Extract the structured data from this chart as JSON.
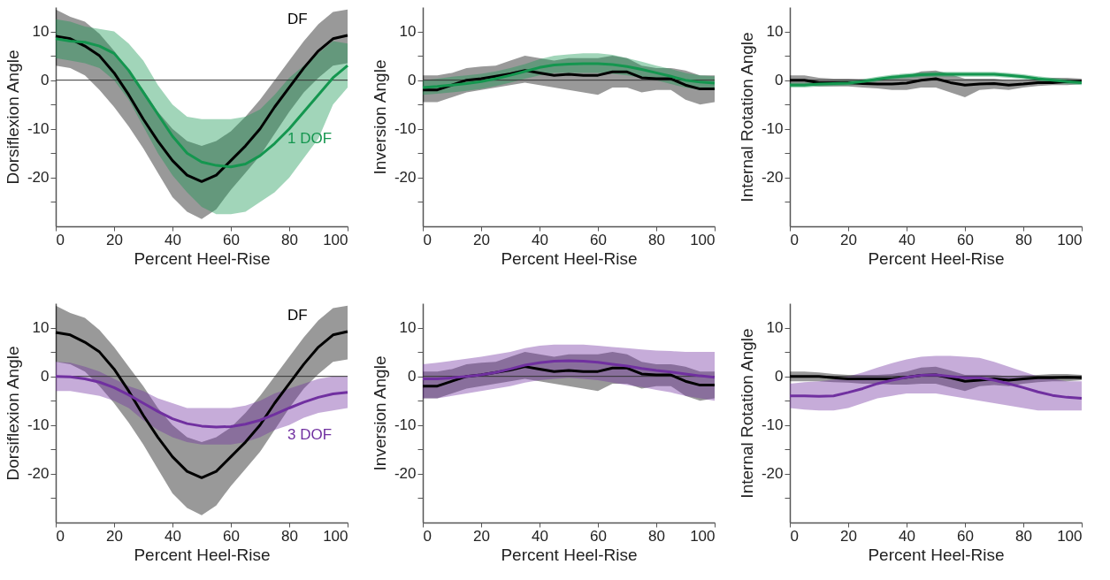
{
  "chart_data": [
    {
      "type": "line",
      "xlabel": "Percent Heel-Rise",
      "ylabel": "Dorsiflexion Angle",
      "x": [
        0,
        5,
        10,
        15,
        20,
        25,
        30,
        35,
        40,
        45,
        50,
        55,
        60,
        65,
        70,
        75,
        80,
        85,
        90,
        95,
        100
      ],
      "xlim": [
        0,
        100
      ],
      "xticks": [
        0,
        20,
        40,
        60,
        80,
        100
      ],
      "ylim": [
        -30,
        15
      ],
      "yticks": [
        {
          "value": -25,
          "label": null
        },
        -20,
        {
          "value": -15,
          "label": null
        },
        -10,
        {
          "value": -5,
          "label": null
        },
        0,
        {
          "value": 5,
          "label": null
        },
        10
      ],
      "ref_lines": [
        {
          "axis": "y",
          "value": 0,
          "color": "#333333"
        }
      ],
      "series": [
        {
          "name": "DF",
          "color": "#000000",
          "values": [
            9,
            8.5,
            7,
            5,
            1.5,
            -3,
            -8,
            -12.5,
            -16.5,
            -19.5,
            -20.8,
            -19.5,
            -16.5,
            -13.5,
            -10,
            -5.5,
            -1.5,
            2.5,
            6,
            8.5,
            9.2
          ],
          "upper": [
            14.5,
            13,
            12,
            9.5,
            6,
            2,
            -2,
            -6.5,
            -10,
            -12.5,
            -13.5,
            -12.5,
            -10.5,
            -7.5,
            -4,
            0,
            4,
            8,
            11.5,
            14,
            14.5
          ],
          "lower": [
            3,
            2.5,
            1,
            -2,
            -5.5,
            -9.5,
            -14,
            -19,
            -24,
            -27,
            -28.5,
            -26.5,
            -22.5,
            -19,
            -15.5,
            -11,
            -6.5,
            -2.5,
            0.5,
            3,
            3.5
          ]
        },
        {
          "name": "1 DOF",
          "color": "#14964f",
          "values": [
            8.5,
            8,
            7.8,
            7,
            5.5,
            2,
            -2.5,
            -7,
            -11.5,
            -15,
            -16.8,
            -17.5,
            -17.8,
            -17.2,
            -15.5,
            -13,
            -10,
            -6.5,
            -3,
            0.5,
            3
          ],
          "upper": [
            12.5,
            12,
            11,
            10.5,
            10,
            7.5,
            4,
            -1,
            -5,
            -7.5,
            -8,
            -8,
            -8,
            -7.5,
            -6,
            -3,
            0.5,
            3,
            5.5,
            8,
            7.5
          ],
          "lower": [
            4.5,
            4,
            3.5,
            2.5,
            0,
            -4,
            -9.5,
            -15,
            -19.5,
            -23,
            -26,
            -27.5,
            -27.5,
            -27,
            -25,
            -23,
            -20,
            -16,
            -12,
            -5,
            -1.5
          ]
        }
      ]
    },
    {
      "type": "line",
      "xlabel": "Percent Heel-Rise",
      "ylabel": "Inversion Angle",
      "x": [
        0,
        5,
        10,
        15,
        20,
        25,
        30,
        35,
        40,
        45,
        50,
        55,
        60,
        65,
        70,
        75,
        80,
        85,
        90,
        95,
        100
      ],
      "xlim": [
        0,
        100
      ],
      "xticks": [
        0,
        20,
        40,
        60,
        80,
        100
      ],
      "ylim": [
        -30,
        15
      ],
      "yticks": [
        {
          "value": -25,
          "label": null
        },
        -20,
        {
          "value": -15,
          "label": null
        },
        -10,
        {
          "value": -5,
          "label": null
        },
        0,
        {
          "value": 5,
          "label": null
        },
        10
      ],
      "ref_lines": [
        {
          "axis": "y",
          "value": 0,
          "color": "#333333"
        }
      ],
      "series": [
        {
          "color": "#000000",
          "values": [
            -2,
            -2,
            -1,
            0,
            0.3,
            0.8,
            1.3,
            2,
            1.5,
            1,
            1.2,
            1,
            1,
            1.7,
            1.7,
            0.5,
            0.3,
            0.3,
            -1,
            -1.8,
            -1.8
          ],
          "upper": [
            1,
            1,
            1.5,
            2.5,
            2.8,
            3,
            4,
            5,
            4.5,
            4,
            4.5,
            4.5,
            4.5,
            5,
            4.5,
            3,
            2.5,
            2.5,
            2,
            1,
            1
          ],
          "lower": [
            -4.5,
            -4.5,
            -3.5,
            -2.5,
            -2,
            -1.5,
            -1,
            -0.5,
            -1,
            -1.5,
            -2,
            -2.5,
            -3,
            -1.5,
            -1.5,
            -2.5,
            -2,
            -2,
            -4,
            -5,
            -4.5
          ]
        },
        {
          "color": "#14964f",
          "values": [
            -1.5,
            -1.3,
            -1,
            -0.7,
            -0.3,
            0.3,
            1,
            1.8,
            2.6,
            3.1,
            3.3,
            3.4,
            3.4,
            3.2,
            2.8,
            2.2,
            1.5,
            0.8,
            0,
            -0.4,
            -0.6
          ],
          "upper": [
            0,
            0.3,
            0.7,
            1,
            1.3,
            1.8,
            2.5,
            3.3,
            4.3,
            5,
            5.3,
            5.5,
            5.5,
            5.2,
            4.5,
            3.8,
            3,
            2.3,
            1.5,
            1,
            0.8
          ],
          "lower": [
            -3,
            -2.8,
            -2.5,
            -2.2,
            -1.8,
            -1.2,
            -0.5,
            0.3,
            1,
            1.5,
            1.5,
            1.5,
            1.5,
            1.3,
            1,
            0.5,
            0,
            -0.8,
            -1.5,
            -2,
            -2
          ]
        }
      ]
    },
    {
      "type": "line",
      "xlabel": "Percent Heel-Rise",
      "ylabel": "Internal Rotation Angle",
      "x": [
        0,
        5,
        10,
        15,
        20,
        25,
        30,
        35,
        40,
        45,
        50,
        55,
        60,
        65,
        70,
        75,
        80,
        85,
        90,
        95,
        100
      ],
      "xlim": [
        0,
        100
      ],
      "xticks": [
        0,
        20,
        40,
        60,
        80,
        100
      ],
      "ylim": [
        -30,
        15
      ],
      "yticks": [
        {
          "value": -25,
          "label": null
        },
        -20,
        {
          "value": -15,
          "label": null
        },
        -10,
        {
          "value": -5,
          "label": null
        },
        0,
        {
          "value": 5,
          "label": null
        },
        10
      ],
      "ref_lines": [
        {
          "axis": "y",
          "value": 0,
          "color": "#333333"
        }
      ],
      "series": [
        {
          "color": "#000000",
          "values": [
            0,
            0,
            -0.5,
            -0.5,
            -0.5,
            -0.7,
            -0.8,
            -0.8,
            -0.6,
            0,
            0.3,
            -0.5,
            -1,
            -0.8,
            -0.7,
            -1,
            -0.8,
            -0.5,
            -0.5,
            -0.3,
            -0.3
          ],
          "upper": [
            1,
            1,
            0.5,
            0.3,
            0.3,
            0.2,
            0.2,
            0.5,
            0.8,
            1.8,
            2,
            1.2,
            0.3,
            0.3,
            0.3,
            0,
            0,
            0.3,
            0.5,
            0.5,
            0.3
          ],
          "lower": [
            -1,
            -1,
            -1.3,
            -1.3,
            -1.3,
            -1.5,
            -1.7,
            -2,
            -2,
            -1.5,
            -1.5,
            -2.5,
            -3.5,
            -2,
            -1.8,
            -2,
            -1.5,
            -1.2,
            -1,
            -1,
            -0.8
          ]
        },
        {
          "color": "#14964f",
          "values": [
            -1,
            -1,
            -0.8,
            -0.7,
            -0.6,
            -0.3,
            0.2,
            0.6,
            0.9,
            1.1,
            1.2,
            1.2,
            1.2,
            1.2,
            1.2,
            1,
            0.7,
            0.3,
            0,
            -0.3,
            -0.5
          ],
          "upper": [
            -0.5,
            -0.5,
            -0.3,
            -0.2,
            -0.1,
            0.2,
            0.7,
            1.1,
            1.4,
            1.6,
            1.7,
            1.7,
            1.7,
            1.7,
            1.7,
            1.5,
            1.2,
            0.8,
            0.5,
            0.2,
            0
          ],
          "lower": [
            -1.5,
            -1.5,
            -1.3,
            -1.2,
            -1.1,
            -0.8,
            -0.3,
            0.1,
            0.4,
            0.6,
            0.7,
            0.7,
            0.7,
            0.7,
            0.7,
            0.5,
            0.2,
            -0.2,
            -0.5,
            -0.8,
            -1
          ]
        }
      ]
    },
    {
      "type": "line",
      "xlabel": "Percent Heel-Rise",
      "ylabel": "Dorsiflexion Angle",
      "x": [
        0,
        5,
        10,
        15,
        20,
        25,
        30,
        35,
        40,
        45,
        50,
        55,
        60,
        65,
        70,
        75,
        80,
        85,
        90,
        95,
        100
      ],
      "xlim": [
        0,
        100
      ],
      "xticks": [
        0,
        20,
        40,
        60,
        80,
        100
      ],
      "ylim": [
        -30,
        15
      ],
      "yticks": [
        {
          "value": -25,
          "label": null
        },
        -20,
        {
          "value": -15,
          "label": null
        },
        -10,
        {
          "value": -5,
          "label": null
        },
        0,
        {
          "value": 5,
          "label": null
        },
        10
      ],
      "ref_lines": [
        {
          "axis": "y",
          "value": 0,
          "color": "#333333"
        }
      ],
      "series": [
        {
          "name": "DF",
          "color": "#000000",
          "values": [
            9,
            8.5,
            7,
            5,
            1.5,
            -3,
            -8,
            -12.5,
            -16.5,
            -19.5,
            -20.8,
            -19.5,
            -16.5,
            -13.5,
            -10,
            -5.5,
            -1.5,
            2.5,
            6,
            8.5,
            9.2
          ],
          "upper": [
            14.5,
            13,
            12,
            9.5,
            6,
            2,
            -2,
            -6.5,
            -10,
            -12.5,
            -13.5,
            -12.5,
            -10.5,
            -7.5,
            -4,
            0,
            4,
            8,
            11.5,
            14,
            14.5
          ],
          "lower": [
            3,
            2.5,
            1,
            -2,
            -5.5,
            -9.5,
            -14,
            -19,
            -24,
            -27,
            -28.5,
            -26.5,
            -22.5,
            -19,
            -15.5,
            -11,
            -6.5,
            -2.5,
            0.5,
            3,
            3.5
          ]
        },
        {
          "name": "3 DOF",
          "color": "#7030a0",
          "values": [
            0,
            -0.1,
            -0.5,
            -1.2,
            -2.3,
            -3.8,
            -5.5,
            -7.2,
            -8.7,
            -9.7,
            -10.2,
            -10.4,
            -10.3,
            -9.8,
            -9,
            -7.8,
            -6.5,
            -5.3,
            -4.3,
            -3.6,
            -3.3
          ],
          "upper": [
            3,
            2.8,
            2,
            1,
            -0.5,
            -2,
            -3,
            -4.5,
            -5.5,
            -6.5,
            -6.5,
            -6.5,
            -6.5,
            -6,
            -5,
            -3.5,
            -2.5,
            -1.5,
            -0.5,
            0,
            0
          ],
          "lower": [
            -3,
            -3,
            -3.5,
            -4,
            -5,
            -6.5,
            -9,
            -11,
            -12.5,
            -13.5,
            -14,
            -14,
            -14,
            -13.5,
            -12.5,
            -11,
            -10,
            -8.5,
            -7.5,
            -7,
            -6.5
          ]
        }
      ]
    },
    {
      "type": "line",
      "xlabel": "Percent Heel-Rise",
      "ylabel": "Inversion Angle",
      "x": [
        0,
        5,
        10,
        15,
        20,
        25,
        30,
        35,
        40,
        45,
        50,
        55,
        60,
        65,
        70,
        75,
        80,
        85,
        90,
        95,
        100
      ],
      "xlim": [
        0,
        100
      ],
      "xticks": [
        0,
        20,
        40,
        60,
        80,
        100
      ],
      "ylim": [
        -30,
        15
      ],
      "yticks": [
        {
          "value": -25,
          "label": null
        },
        -20,
        {
          "value": -15,
          "label": null
        },
        -10,
        {
          "value": -5,
          "label": null
        },
        0,
        {
          "value": 5,
          "label": null
        },
        10
      ],
      "ref_lines": [
        {
          "axis": "y",
          "value": 0,
          "color": "#333333"
        }
      ],
      "series": [
        {
          "color": "#000000",
          "values": [
            -2,
            -2,
            -1,
            0,
            0.3,
            0.8,
            1.3,
            2,
            1.5,
            1,
            1.2,
            1,
            1,
            1.7,
            1.7,
            0.5,
            0.3,
            0.3,
            -1,
            -1.8,
            -1.8
          ],
          "upper": [
            1,
            1,
            1.5,
            2.5,
            2.8,
            3,
            4,
            5,
            4.5,
            4,
            4.5,
            4.5,
            4.5,
            5,
            4.5,
            3,
            2.5,
            2.5,
            2,
            1,
            1
          ],
          "lower": [
            -4.5,
            -4.5,
            -3.5,
            -2.5,
            -2,
            -1.5,
            -1,
            -0.5,
            -1,
            -1.5,
            -2,
            -2.5,
            -3,
            -1.5,
            -1.5,
            -2.5,
            -2,
            -2,
            -4,
            -5,
            -4.5
          ]
        },
        {
          "color": "#7030a0",
          "values": [
            -0.5,
            -0.5,
            -0.3,
            0,
            0.3,
            0.8,
            1.5,
            2.3,
            2.8,
            3.1,
            3.2,
            3.1,
            2.9,
            2.5,
            2.1,
            1.6,
            1.2,
            0.9,
            0.5,
            0.1,
            -0.2
          ],
          "upper": [
            2.5,
            2.8,
            3.2,
            3.6,
            4,
            4.5,
            5,
            5.8,
            6.3,
            6.5,
            6.5,
            6.5,
            6.3,
            6,
            5.8,
            5.5,
            5.3,
            5.2,
            5,
            5,
            5
          ],
          "lower": [
            -4.5,
            -4.5,
            -4,
            -3.5,
            -3,
            -2.5,
            -2,
            -1.3,
            -0.8,
            -0.5,
            -0.3,
            -0.5,
            -0.8,
            -1.3,
            -1.8,
            -2.2,
            -2.8,
            -3.3,
            -4,
            -4.5,
            -5
          ]
        }
      ]
    },
    {
      "type": "line",
      "xlabel": "Percent Heel-Rise",
      "ylabel": "Internal Rotation Angle",
      "x": [
        0,
        5,
        10,
        15,
        20,
        25,
        30,
        35,
        40,
        45,
        50,
        55,
        60,
        65,
        70,
        75,
        80,
        85,
        90,
        95,
        100
      ],
      "xlim": [
        0,
        100
      ],
      "xticks": [
        0,
        20,
        40,
        60,
        80,
        100
      ],
      "ylim": [
        -30,
        15
      ],
      "yticks": [
        {
          "value": -25,
          "label": null
        },
        -20,
        {
          "value": -15,
          "label": null
        },
        -10,
        {
          "value": -5,
          "label": null
        },
        0,
        {
          "value": 5,
          "label": null
        },
        10
      ],
      "ref_lines": [
        {
          "axis": "y",
          "value": 0,
          "color": "#333333"
        }
      ],
      "series": [
        {
          "color": "#000000",
          "values": [
            0,
            0,
            0,
            -0.3,
            -0.5,
            -0.5,
            -0.5,
            -0.5,
            -0.2,
            0.2,
            0.3,
            -0.3,
            -1,
            -0.8,
            -0.5,
            -0.8,
            -0.5,
            -0.3,
            -0.3,
            -0.2,
            -0.3
          ],
          "upper": [
            1,
            1,
            0.8,
            0.5,
            0.3,
            0.3,
            0.3,
            0.5,
            1,
            1.8,
            2,
            1.2,
            0.3,
            0.3,
            0.3,
            0,
            0.2,
            0.3,
            0.5,
            0.5,
            0.3
          ],
          "lower": [
            -1,
            -1,
            -1,
            -1.2,
            -1.3,
            -1.5,
            -1.5,
            -1.7,
            -1.7,
            -1.5,
            -1.5,
            -2.3,
            -3,
            -2,
            -1.8,
            -2,
            -1.5,
            -1.2,
            -1,
            -1,
            -0.8
          ]
        },
        {
          "color": "#7030a0",
          "values": [
            -4,
            -4,
            -4.1,
            -4,
            -3.3,
            -2.5,
            -1.5,
            -0.8,
            -0.2,
            0.2,
            0.3,
            0,
            -0.3,
            -0.3,
            -0.8,
            -1.5,
            -2.3,
            -3.2,
            -3.9,
            -4.3,
            -4.5
          ],
          "upper": [
            -1.5,
            -1.2,
            -1,
            -0.7,
            0,
            0.8,
            1.8,
            2.7,
            3.5,
            4,
            4.2,
            4.2,
            4,
            3.8,
            3,
            2,
            1,
            0,
            -0.5,
            -1,
            -1
          ],
          "lower": [
            -6.5,
            -6.8,
            -7,
            -7,
            -6.5,
            -5.5,
            -4.5,
            -4,
            -3.5,
            -3.5,
            -3.5,
            -4,
            -4.5,
            -5,
            -5.5,
            -6,
            -6.5,
            -7,
            -7,
            -7,
            -7
          ]
        }
      ]
    }
  ]
}
